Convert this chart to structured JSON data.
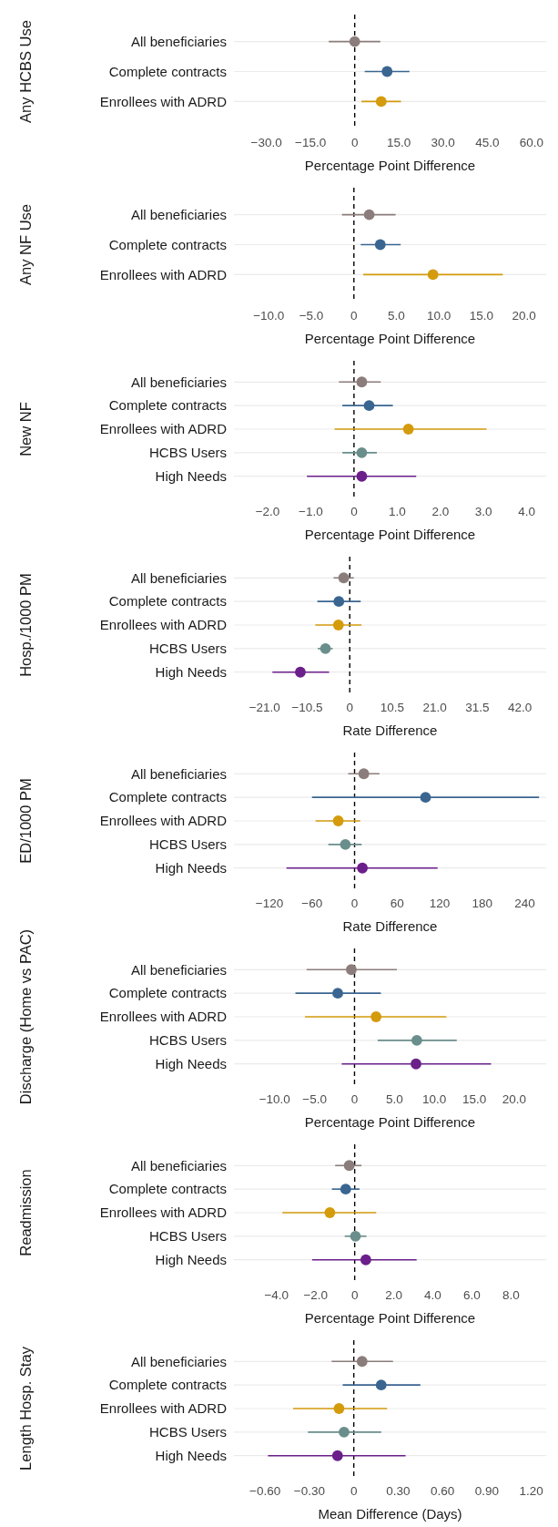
{
  "chart_data": [
    {
      "type": "scatter",
      "orientation": "horizontal",
      "ylabel": "Any HCBS Use",
      "xlabel": "Percentage Point Difference",
      "categories": [
        "All beneficiaries",
        "Complete contracts",
        "Enrollees with ADRD"
      ],
      "values": [
        0,
        11.0,
        9.0
      ],
      "errors": [
        [
          -8.8,
          8.7
        ],
        [
          3.4,
          18.6
        ],
        [
          2.3,
          15.7
        ]
      ],
      "colors": [
        "#8b7d7b",
        "#3a6591",
        "#d49b0c"
      ],
      "xlim": [
        -41,
        65
      ],
      "xticks": [
        {
          "value": -30,
          "label": "−30.0"
        },
        {
          "value": -15,
          "label": "−15.0"
        },
        0,
        {
          "value": 15,
          "label": "15.0"
        },
        {
          "value": 30,
          "label": "30.0"
        },
        {
          "value": 45,
          "label": "45.0"
        },
        {
          "value": 60,
          "label": "60.0"
        }
      ],
      "grid": "y",
      "marker": "circle",
      "ref_lines": [
        {
          "axis": "x",
          "value": 0,
          "line_style": "dashed",
          "color": "#000000"
        }
      ]
    },
    {
      "type": "scatter",
      "orientation": "horizontal",
      "ylabel": "Any NF Use",
      "xlabel": "Percentage Point Difference",
      "categories": [
        "All beneficiaries",
        "Complete contracts",
        "Enrollees with ADRD"
      ],
      "values": [
        1.8,
        3.1,
        9.3
      ],
      "errors": [
        [
          -1.4,
          4.9
        ],
        [
          0.8,
          5.5
        ],
        [
          1.1,
          17.5
        ]
      ],
      "colors": [
        "#8b7d7b",
        "#3a6591",
        "#d49b0c"
      ],
      "xlim": [
        -14.1,
        22.6
      ],
      "xticks": [
        {
          "value": -10,
          "label": "−10.0"
        },
        {
          "value": -5,
          "label": "−5.0"
        },
        0,
        {
          "value": 5,
          "label": "5.0"
        },
        {
          "value": 10,
          "label": "10.0"
        },
        {
          "value": 15,
          "label": "15.0"
        },
        {
          "value": 20,
          "label": "20.0"
        }
      ],
      "grid": "y",
      "marker": "circle",
      "ref_lines": [
        {
          "axis": "x",
          "value": 0,
          "line_style": "dashed",
          "color": "#000000"
        }
      ]
    },
    {
      "type": "scatter",
      "orientation": "horizontal",
      "ylabel": "New NF",
      "xlabel": "Percentage Point Difference",
      "categories": [
        "All beneficiaries",
        "Complete contracts",
        "Enrollees with ADRD",
        "HCBS Users",
        "High Needs"
      ],
      "values": [
        0.18,
        0.35,
        1.26,
        0.18,
        0.18
      ],
      "errors": [
        [
          -0.35,
          0.62
        ],
        [
          -0.27,
          0.9
        ],
        [
          -0.45,
          3.07
        ],
        [
          -0.27,
          0.53
        ],
        [
          -1.09,
          1.44
        ]
      ],
      "colors": [
        "#8b7d7b",
        "#3a6591",
        "#d49b0c",
        "#6a8e8b",
        "#6a1f8a"
      ],
      "xlim": [
        -2.78,
        4.45
      ],
      "xticks": [
        {
          "value": -2,
          "label": "−2.0"
        },
        {
          "value": -1,
          "label": "−1.0"
        },
        0,
        {
          "value": 1,
          "label": "1.0"
        },
        {
          "value": 2,
          "label": "2.0"
        },
        {
          "value": 3,
          "label": "3.0"
        },
        {
          "value": 4,
          "label": "4.0"
        }
      ],
      "grid": "y",
      "marker": "circle",
      "ref_lines": [
        {
          "axis": "x",
          "value": 0,
          "line_style": "dashed",
          "color": "#000000"
        }
      ]
    },
    {
      "type": "scatter",
      "orientation": "horizontal",
      "ylabel": "Hosp./1000 PM",
      "xlabel": "Rate Difference",
      "categories": [
        "All beneficiaries",
        "Complete contracts",
        "Enrollees with ADRD",
        "HCBS Users",
        "High Needs"
      ],
      "values": [
        -1.5,
        -2.7,
        -2.8,
        -6.0,
        -12.2
      ],
      "errors": [
        [
          -4.0,
          1.0
        ],
        [
          -8.0,
          2.7
        ],
        [
          -8.5,
          2.9
        ],
        [
          -7.9,
          -4.2
        ],
        [
          -19.1,
          -5.1
        ]
      ],
      "colors": [
        "#8b7d7b",
        "#3a6591",
        "#d49b0c",
        "#6a8e8b",
        "#6a1f8a"
      ],
      "xlim": [
        -28.6,
        48.5
      ],
      "xticks": [
        {
          "value": -21,
          "label": "−21.0"
        },
        {
          "value": -10.5,
          "label": "−10.5"
        },
        0,
        10.5,
        {
          "value": 21,
          "label": "21.0"
        },
        31.5,
        {
          "value": 42,
          "label": "42.0"
        }
      ],
      "grid": "y",
      "marker": "circle",
      "ref_lines": [
        {
          "axis": "x",
          "value": 0,
          "line_style": "dashed",
          "color": "#000000"
        }
      ]
    },
    {
      "type": "scatter",
      "orientation": "horizontal",
      "ylabel": "ED/1000 PM",
      "xlabel": "Rate Difference",
      "categories": [
        "All beneficiaries",
        "Complete contracts",
        "Enrollees with ADRD",
        "HCBS Users",
        "High Needs"
      ],
      "values": [
        13,
        100,
        -23,
        -13,
        11
      ],
      "errors": [
        [
          -9,
          35
        ],
        [
          -60,
          260
        ],
        [
          -55,
          8
        ],
        [
          -37,
          10
        ],
        [
          -96,
          117
        ]
      ],
      "colors": [
        "#8b7d7b",
        "#3a6591",
        "#d49b0c",
        "#6a8e8b",
        "#6a1f8a"
      ],
      "xlim": [
        -170,
        270
      ],
      "xticks": [
        {
          "value": -120,
          "label": "−120"
        },
        {
          "value": -60,
          "label": "−60"
        },
        0,
        60,
        120,
        180,
        240
      ],
      "grid": "y",
      "marker": "circle",
      "ref_lines": [
        {
          "axis": "x",
          "value": 0,
          "line_style": "dashed",
          "color": "#000000"
        }
      ]
    },
    {
      "type": "scatter",
      "orientation": "horizontal",
      "ylabel": "Discharge (Home vs PAC)",
      "xlabel": "Percentage Point Difference",
      "categories": [
        "All beneficiaries",
        "Complete contracts",
        "Enrollees with ADRD",
        "HCBS Users",
        "High Needs"
      ],
      "values": [
        -0.4,
        -2.1,
        2.7,
        7.8,
        7.7
      ],
      "errors": [
        [
          -6.0,
          5.3
        ],
        [
          -7.4,
          3.3
        ],
        [
          -6.2,
          11.5
        ],
        [
          2.9,
          12.8
        ],
        [
          -1.6,
          17.1
        ]
      ],
      "colors": [
        "#8b7d7b",
        "#3a6591",
        "#d49b0c",
        "#6a8e8b",
        "#6a1f8a"
      ],
      "xlim": [
        -15.1,
        24.0
      ],
      "xticks": [
        {
          "value": -10,
          "label": "−10.0"
        },
        {
          "value": -5,
          "label": "−5.0"
        },
        0,
        {
          "value": 5,
          "label": "5.0"
        },
        {
          "value": 10,
          "label": "10.0"
        },
        {
          "value": 15,
          "label": "15.0"
        },
        {
          "value": 20,
          "label": "20.0"
        }
      ],
      "grid": "y",
      "marker": "circle",
      "ref_lines": [
        {
          "axis": "x",
          "value": 0,
          "line_style": "dashed",
          "color": "#000000"
        }
      ]
    },
    {
      "type": "scatter",
      "orientation": "horizontal",
      "ylabel": "Readmission",
      "xlabel": "Percentage Point Difference",
      "categories": [
        "All beneficiaries",
        "Complete contracts",
        "Enrollees with ADRD",
        "HCBS Users",
        "High Needs"
      ],
      "values": [
        -0.28,
        -0.46,
        -1.27,
        0.04,
        0.57
      ],
      "errors": [
        [
          -1.0,
          0.35
        ],
        [
          -1.17,
          0.25
        ],
        [
          -3.7,
          1.1
        ],
        [
          -0.51,
          0.6
        ],
        [
          -2.18,
          3.17
        ]
      ],
      "colors": [
        "#8b7d7b",
        "#3a6591",
        "#d49b0c",
        "#6a8e8b",
        "#6a1f8a"
      ],
      "xlim": [
        -6.18,
        9.8
      ],
      "xticks": [
        {
          "value": -4,
          "label": "−4.0"
        },
        {
          "value": -2,
          "label": "−2.0"
        },
        0,
        {
          "value": 2,
          "label": "2.0"
        },
        {
          "value": 4,
          "label": "4.0"
        },
        {
          "value": 6,
          "label": "6.0"
        },
        {
          "value": 8,
          "label": "8.0"
        }
      ],
      "grid": "y",
      "marker": "circle",
      "ref_lines": [
        {
          "axis": "x",
          "value": 0,
          "line_style": "dashed",
          "color": "#000000"
        }
      ]
    },
    {
      "type": "scatter",
      "orientation": "horizontal",
      "ylabel": "Length Hosp. Stay",
      "xlabel": "Mean Difference (Days)",
      "categories": [
        "All beneficiaries",
        "Complete contracts",
        "Enrollees with ADRD",
        "HCBS Users",
        "High Needs"
      ],
      "values": [
        0.056,
        0.185,
        -0.1,
        -0.066,
        -0.11
      ],
      "errors": [
        [
          -0.15,
          0.265
        ],
        [
          -0.075,
          0.45
        ],
        [
          -0.41,
          0.225
        ],
        [
          -0.31,
          0.185
        ],
        [
          -0.58,
          0.35
        ]
      ],
      "colors": [
        "#8b7d7b",
        "#3a6591",
        "#d49b0c",
        "#6a8e8b",
        "#6a1f8a"
      ],
      "xlim": [
        -0.81,
        1.3
      ],
      "xticks": [
        {
          "value": -0.6,
          "label": "−0.60"
        },
        {
          "value": -0.3,
          "label": "−0.30"
        },
        0,
        {
          "value": 0.3,
          "label": "0.30"
        },
        {
          "value": 0.6,
          "label": "0.60"
        },
        {
          "value": 0.9,
          "label": "0.90"
        },
        {
          "value": 1.2,
          "label": "1.20"
        }
      ],
      "grid": "y",
      "marker": "circle",
      "ref_lines": [
        {
          "axis": "x",
          "value": 0,
          "line_style": "dashed",
          "color": "#000000"
        }
      ]
    }
  ]
}
